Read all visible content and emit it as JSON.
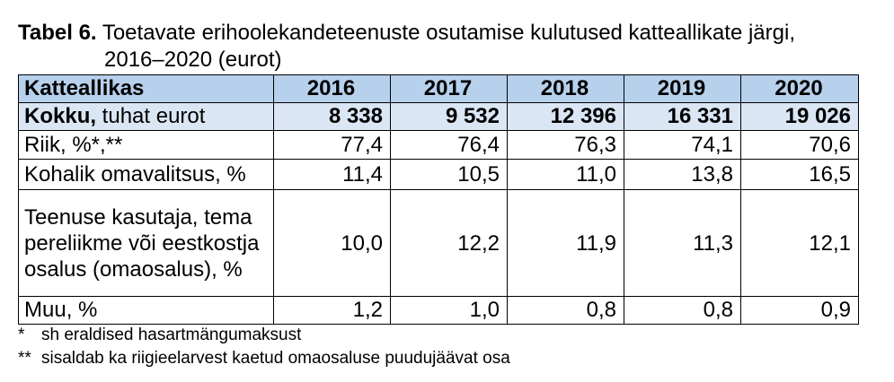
{
  "caption": {
    "label": "Tabel 6.",
    "title_line1": "Toetavate erihoolekandeteenuste osutamise kulutused katteallikate järgi,",
    "title_line2": "2016–2020 (eurot)"
  },
  "table": {
    "header": [
      "Katteallikas",
      "2016",
      "2017",
      "2018",
      "2019",
      "2020"
    ],
    "total_row": {
      "label_bold": "Kokku,",
      "label_rest": " tuhat eurot",
      "values": [
        "8 338",
        "9 532",
        "12 396",
        "16 331",
        "19 026"
      ]
    },
    "rows": [
      {
        "label": "Riik, %*,**",
        "values": [
          "77,4",
          "76,4",
          "76,3",
          "74,1",
          "70,6"
        ]
      },
      {
        "label": "Kohalik omavalitsus, %",
        "values": [
          "11,4",
          "10,5",
          "11,0",
          "13,8",
          "16,5"
        ]
      },
      {
        "label": "Teenuse kasutaja, tema pereliikme või eestkostja osalus (omaosalus), %",
        "values": [
          "10,0",
          "12,2",
          "11,9",
          "11,3",
          "12,1"
        ]
      },
      {
        "label": "Muu, %",
        "values": [
          "1,2",
          "1,0",
          "0,8",
          "0,8",
          "0,9"
        ]
      }
    ]
  },
  "footnotes": [
    {
      "mark": "*",
      "text": "sh eraldised hasartmängumaksust"
    },
    {
      "mark": "**",
      "text": "sisaldab ka riigieelarvest kaetud omaosaluse puudujäävat osa"
    }
  ],
  "colors": {
    "header_bg": "#b7d1ec",
    "total_bg": "#dbe6f4"
  }
}
